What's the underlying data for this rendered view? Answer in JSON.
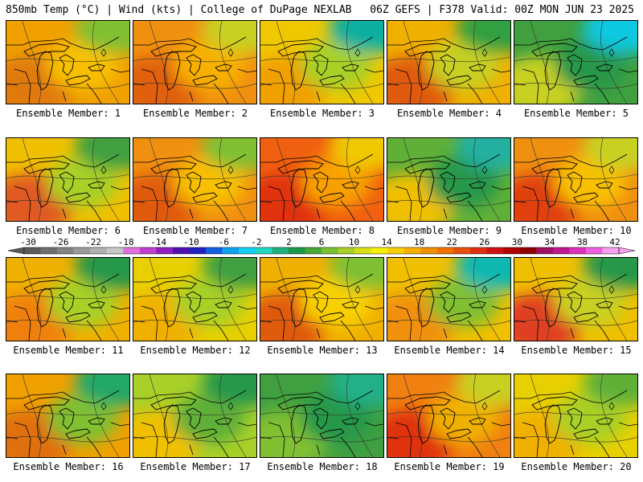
{
  "header": {
    "left": "850mb Temp (°C) | Wind (kts) | College of DuPage NEXLAB",
    "right": "06Z GEFS | F378 Valid: 00Z MON JUN 23 2025"
  },
  "panels": [
    {
      "label": "Ensemble Member: 1",
      "colors": [
        "#f0a000",
        "#e07a10",
        "#f8c000",
        "#80c030"
      ]
    },
    {
      "label": "Ensemble Member: 2",
      "colors": [
        "#f09010",
        "#e06010",
        "#f8b000",
        "#c8d020"
      ]
    },
    {
      "label": "Ensemble Member: 3",
      "colors": [
        "#f0c800",
        "#f0a000",
        "#a8d028",
        "#10b0a0"
      ]
    },
    {
      "label": "Ensemble Member: 4",
      "colors": [
        "#f0b000",
        "#e05a10",
        "#c8d020",
        "#30a040"
      ]
    },
    {
      "label": "Ensemble Member: 5",
      "colors": [
        "#40a040",
        "#c8d020",
        "#289848",
        "#10c8e0"
      ]
    },
    {
      "label": "Ensemble Member: 6",
      "colors": [
        "#f0c000",
        "#e05a20",
        "#a8d028",
        "#40a040"
      ]
    },
    {
      "label": "Ensemble Member: 7",
      "colors": [
        "#f09010",
        "#e05a10",
        "#f8c000",
        "#80c030"
      ]
    },
    {
      "label": "Ensemble Member: 8",
      "colors": [
        "#f06010",
        "#e03010",
        "#f8a000",
        "#f0c800"
      ]
    },
    {
      "label": "Ensemble Member: 9",
      "colors": [
        "#60b038",
        "#f0c000",
        "#289848",
        "#20b0a0"
      ]
    },
    {
      "label": "Ensemble Member: 10",
      "colors": [
        "#f09010",
        "#e04010",
        "#f8c000",
        "#c8d020"
      ]
    },
    {
      "label": "Ensemble Member: 11",
      "colors": [
        "#f0b000",
        "#f08010",
        "#a8d028",
        "#289848"
      ]
    },
    {
      "label": "Ensemble Member: 12",
      "colors": [
        "#e8d000",
        "#f0b000",
        "#a8d028",
        "#40a040"
      ]
    },
    {
      "label": "Ensemble Member: 13",
      "colors": [
        "#f0b000",
        "#e05a10",
        "#f8d000",
        "#80c030"
      ]
    },
    {
      "label": "Ensemble Member: 14",
      "colors": [
        "#f0c000",
        "#f09010",
        "#80c030",
        "#10b8b0"
      ]
    },
    {
      "label": "Ensemble Member: 15",
      "colors": [
        "#f0c000",
        "#e04020",
        "#c8d020",
        "#289848"
      ]
    },
    {
      "label": "Ensemble Member: 16",
      "colors": [
        "#f0a000",
        "#e07010",
        "#80c030",
        "#20a868"
      ]
    },
    {
      "label": "Ensemble Member: 17",
      "colors": [
        "#a8d028",
        "#f0c000",
        "#60b038",
        "#289848"
      ]
    },
    {
      "label": "Ensemble Member: 18",
      "colors": [
        "#40a040",
        "#80c030",
        "#289848",
        "#20b088"
      ]
    },
    {
      "label": "Ensemble Member: 19",
      "colors": [
        "#f08010",
        "#e03010",
        "#f0b000",
        "#c8d020"
      ]
    },
    {
      "label": "Ensemble Member: 20",
      "colors": [
        "#e8d000",
        "#f0b000",
        "#a8d028",
        "#60b038"
      ]
    }
  ],
  "colorbar": {
    "ticks": [
      "-30",
      "-26",
      "-22",
      "-18",
      "-14",
      "-10",
      "-6",
      "-2",
      "2",
      "6",
      "10",
      "14",
      "18",
      "22",
      "26",
      "30",
      "34",
      "38",
      "42"
    ],
    "colors": [
      "#5a5a5a",
      "#6e6e6e",
      "#848484",
      "#9a9a9a",
      "#b0b0b0",
      "#c8c8c8",
      "#e070e0",
      "#c040d0",
      "#9020c0",
      "#5010b0",
      "#2020c0",
      "#1060e0",
      "#10a0f0",
      "#10d0f0",
      "#20d8c0",
      "#20b080",
      "#189848",
      "#48a838",
      "#78c030",
      "#a8d028",
      "#d8e010",
      "#f8f000",
      "#f8d000",
      "#f8b000",
      "#f09000",
      "#f07000",
      "#e85010",
      "#e03010",
      "#d01010",
      "#b00000",
      "#900000",
      "#a01060",
      "#c01890",
      "#e030c0",
      "#f060e0",
      "#f8a0f0"
    ]
  }
}
